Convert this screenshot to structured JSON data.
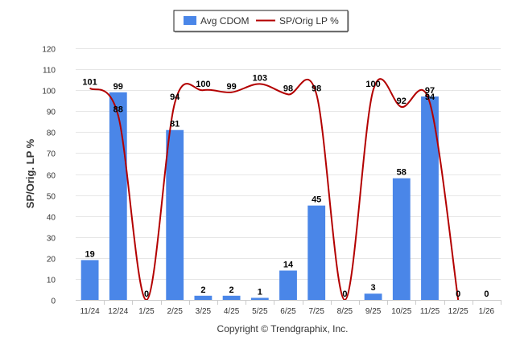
{
  "chart_data": {
    "type": "bar+line",
    "categories": [
      "11/24",
      "12/24",
      "1/25",
      "2/25",
      "3/25",
      "4/25",
      "5/25",
      "6/25",
      "7/25",
      "8/25",
      "9/25",
      "10/25",
      "11/25",
      "12/25",
      "1/26"
    ],
    "series": [
      {
        "name": "Avg CDOM",
        "type": "bar",
        "color": "#4a86e8",
        "values": [
          19,
          99,
          0,
          81,
          2,
          2,
          1,
          14,
          45,
          0,
          3,
          58,
          97,
          0,
          0
        ],
        "labels": [
          "19",
          "99",
          "0",
          "81",
          "2",
          "2",
          "1",
          "14",
          "45",
          "0",
          "3",
          "58",
          "97",
          "0",
          "0"
        ]
      },
      {
        "name": "SP/Orig LP %",
        "type": "line",
        "color": "#b30000",
        "values": [
          101,
          88,
          0,
          94,
          100,
          99,
          103,
          98,
          98,
          0,
          100,
          92,
          94,
          0,
          null
        ],
        "labels": [
          "101",
          "88",
          "",
          "94",
          "100",
          "99",
          "103",
          "98",
          "98",
          "",
          "100",
          "92",
          "94",
          "",
          ""
        ]
      }
    ],
    "ylabel": "SP/Orig. LP %",
    "ylim": [
      0,
      120
    ],
    "yticks": [
      0,
      10,
      20,
      30,
      40,
      50,
      60,
      70,
      80,
      90,
      100,
      110,
      120
    ],
    "ytick_labels": [
      "0",
      "10",
      "20",
      "30",
      "40",
      "50",
      "60",
      "70",
      "80",
      "90",
      "100",
      "110",
      "120"
    ],
    "grid": true,
    "legend_position": "top-center",
    "legend": [
      "Avg CDOM",
      "SP/Orig LP %"
    ],
    "credit": "Copyright © Trendgraphix, Inc."
  }
}
